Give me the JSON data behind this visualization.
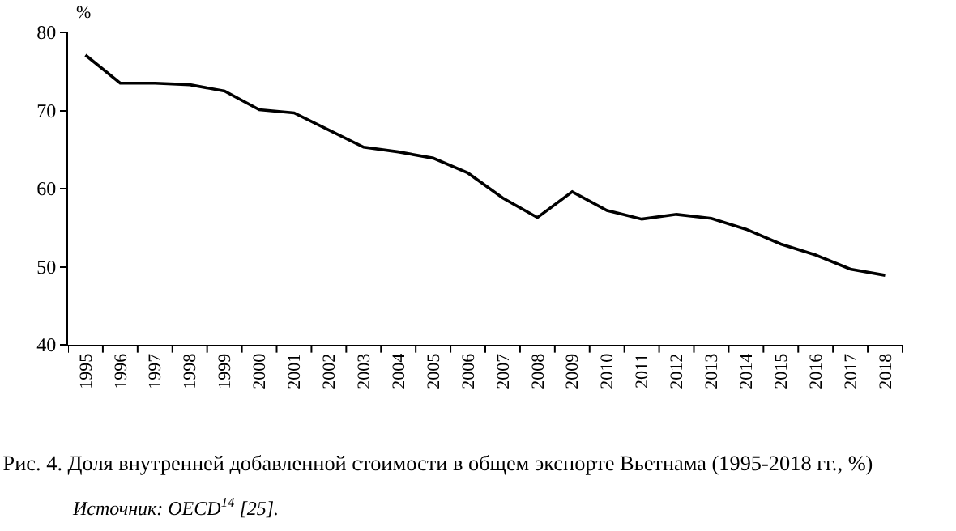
{
  "chart_data": {
    "type": "line",
    "title": "Рис. 4. Доля внутренней добавленной стоимости в общем экспорте Вьетнама (1995-2018 гг., %)",
    "ylabel": "%",
    "annotations": [
      "Источник: OECD$^{14}$ [25]."
    ],
    "categories": [
      "1995",
      "1996",
      "1997",
      "1998",
      "1999",
      "2000",
      "2001",
      "2002",
      "2003",
      "2004",
      "2005",
      "2006",
      "2007",
      "2008",
      "2009",
      "2010",
      "2011",
      "2012",
      "2013",
      "2014",
      "2015",
      "2016",
      "2017",
      "2018"
    ],
    "series": [
      {
        "color": "#000000",
        "values": [
          77.1,
          73.5,
          73.5,
          73.3,
          72.5,
          70.1,
          69.7,
          67.5,
          65.3,
          64.7,
          63.9,
          62.0,
          58.8,
          56.3,
          59.6,
          57.2,
          56.1,
          56.7,
          56.2,
          54.8,
          52.9,
          51.5,
          49.7,
          48.9
        ]
      }
    ],
    "ylim": [
      40,
      80
    ],
    "yticks": [
      40,
      50,
      60,
      70,
      80
    ],
    "grid": false,
    "marker": "none",
    "line_style": "solid"
  }
}
